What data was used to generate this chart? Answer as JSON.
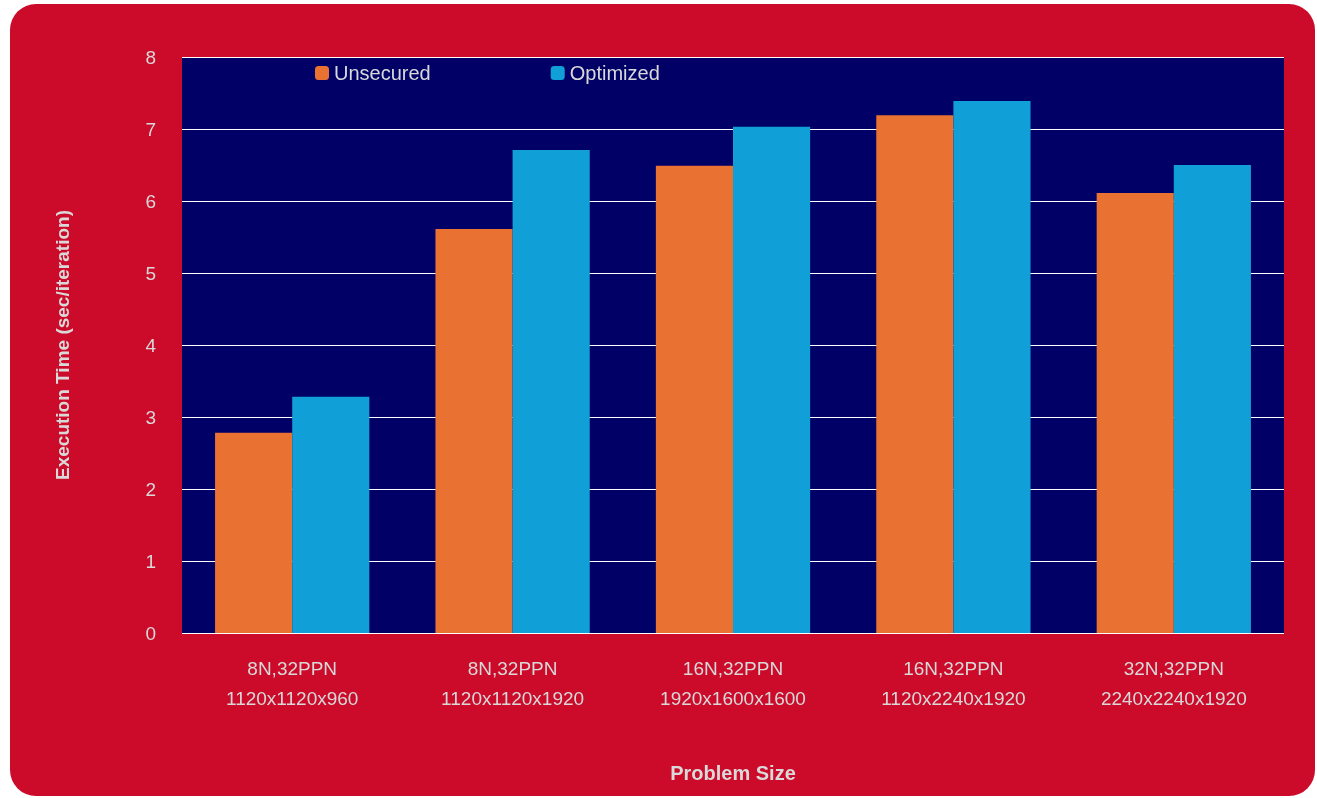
{
  "chart_data": {
    "type": "bar",
    "xlabel": "Problem Size",
    "ylabel": "Execution Time (sec/iteration)",
    "categories": [
      "8N,32PPN\n1120x1120x960",
      "8N,32PPN\n1120x1120x1920",
      "16N,32PPN\n1920x1600x1600",
      "16N,32PPN\n1120x2240x1920",
      "32N,32PPN\n2240x2240x1920"
    ],
    "series": [
      {
        "name": "Unsecured",
        "color": "#e97132",
        "values": [
          2.78,
          5.61,
          6.49,
          7.19,
          6.11
        ]
      },
      {
        "name": "Optimized",
        "color": "#109fd6",
        "values": [
          3.28,
          6.71,
          7.03,
          7.39,
          6.5
        ]
      }
    ],
    "ylim": [
      0,
      8
    ],
    "yticks": [
      0,
      1,
      2,
      3,
      4,
      5,
      6,
      7,
      8
    ],
    "grid": "y",
    "legend": "top"
  }
}
